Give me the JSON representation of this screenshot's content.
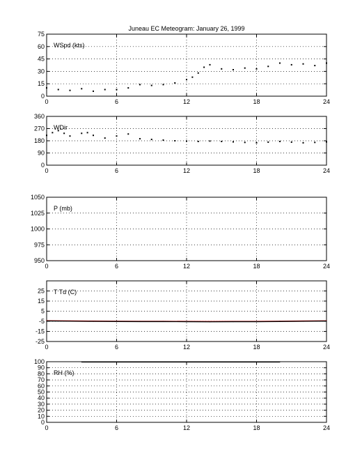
{
  "title": "Juneau EC Meteogram:   January 26, 1999",
  "chart_data": [
    {
      "type": "scatter",
      "label": "WSpd (kts)",
      "xlim": [
        0,
        24
      ],
      "ylim": [
        0,
        75
      ],
      "xticks": [
        0,
        6,
        12,
        18,
        24
      ],
      "yticks": [
        0,
        15,
        30,
        45,
        60,
        75
      ],
      "grid": true,
      "series": [
        {
          "color": "#000000",
          "x": [
            0,
            1,
            2,
            3,
            4,
            5,
            6,
            7,
            8,
            9,
            10,
            11,
            12,
            12.5,
            13,
            13.5,
            14,
            15,
            16,
            17,
            18,
            19,
            20,
            21,
            22,
            23,
            24
          ],
          "y": [
            10,
            8,
            7,
            9,
            6,
            8,
            8,
            10,
            14,
            13,
            14,
            16,
            20,
            23,
            28,
            35,
            38,
            33,
            32,
            34,
            33,
            36,
            40,
            38,
            39,
            37,
            40
          ]
        }
      ]
    },
    {
      "type": "scatter",
      "label": "WDir",
      "xlim": [
        0,
        24
      ],
      "ylim": [
        0,
        360
      ],
      "xticks": [
        0,
        6,
        12,
        18,
        24
      ],
      "yticks": [
        0,
        90,
        180,
        270,
        360
      ],
      "grid": true,
      "series": [
        {
          "color": "#000000",
          "x": [
            0,
            0.5,
            1,
            1.5,
            2,
            3,
            3.5,
            4,
            5,
            6,
            7,
            8,
            9,
            10,
            11,
            12,
            13,
            14,
            15,
            16,
            17,
            18,
            19,
            20,
            21,
            22,
            23,
            24
          ],
          "y": [
            220,
            240,
            255,
            235,
            215,
            235,
            240,
            220,
            200,
            215,
            230,
            195,
            190,
            185,
            180,
            178,
            175,
            178,
            175,
            172,
            168,
            165,
            170,
            175,
            170,
            165,
            168,
            172
          ]
        }
      ]
    },
    {
      "type": "line",
      "label": "P (mb)",
      "xlim": [
        0,
        24
      ],
      "ylim": [
        950,
        1050
      ],
      "xticks": [
        0,
        6,
        12,
        18,
        24
      ],
      "yticks": [
        950,
        975,
        1000,
        1025,
        1050
      ],
      "grid": true,
      "series": []
    },
    {
      "type": "line",
      "label": "T Td (C)",
      "xlim": [
        0,
        24
      ],
      "ylim": [
        -25,
        35
      ],
      "xticks": [
        0,
        6,
        12,
        18,
        24
      ],
      "yticks": [
        -25,
        -15,
        -5,
        5,
        15,
        25
      ],
      "grid": true,
      "series": [
        {
          "color": "#cc0000",
          "x": [
            0,
            2,
            4,
            6,
            8,
            10,
            12,
            14,
            16,
            18,
            20,
            22,
            24
          ],
          "y": [
            -4.4,
            -4.6,
            -4.8,
            -4.9,
            -5.0,
            -5.0,
            -5.1,
            -5.2,
            -5.1,
            -5.1,
            -4.9,
            -4.7,
            -4.5
          ]
        },
        {
          "color": "#000000",
          "x": [
            0,
            2,
            4,
            6,
            8,
            10,
            12,
            14,
            16,
            18,
            20,
            22,
            24
          ],
          "y": [
            -4.7,
            -4.9,
            -5.1,
            -5.2,
            -5.3,
            -5.3,
            -5.4,
            -5.5,
            -5.4,
            -5.4,
            -5.2,
            -5.0,
            -4.8
          ]
        }
      ]
    },
    {
      "type": "line",
      "label": "RH (%)",
      "xlim": [
        0,
        24
      ],
      "ylim": [
        0,
        100
      ],
      "xticks": [
        0,
        6,
        12,
        18,
        24
      ],
      "yticks": [
        0,
        10,
        20,
        30,
        40,
        50,
        60,
        70,
        80,
        90,
        100
      ],
      "grid": true,
      "series": [
        {
          "color": "#000000",
          "x": [
            3,
            6,
            9,
            12,
            15,
            18,
            20
          ],
          "y": [
            99.5,
            99.5,
            99.5,
            99.5,
            99.5,
            99.5,
            99.5
          ]
        }
      ]
    }
  ]
}
